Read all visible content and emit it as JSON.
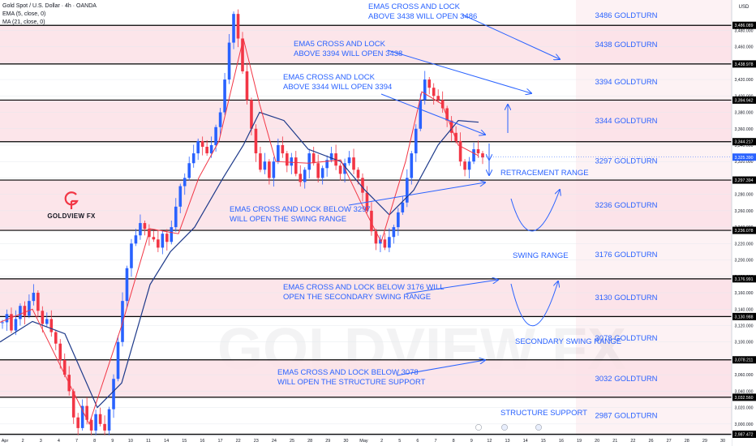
{
  "header": {
    "symbol_title": "Gold Spot / U.S. Dollar · 4h · OANDA",
    "indicator_1": "EMA (5, close, 0)",
    "indicator_2": "MA (21, close, 0)"
  },
  "currency_label": "USD",
  "brand": {
    "logo_text": "GOLDVIEW FX",
    "watermark": "GOLDVIEW FX"
  },
  "colors": {
    "candle_up": "#2962ff",
    "candle_down": "#f23645",
    "ema": "#f23645",
    "ma": "#1e3a8a",
    "zone_fill": "#fbe0e6",
    "annotation": "#2962ff",
    "level_line": "#000000"
  },
  "chart_data": {
    "type": "candlestick",
    "ylim": [
      2986,
      3515
    ],
    "price_ticks": [
      3000,
      3020,
      3040,
      3060,
      3080,
      3100,
      3120,
      3140,
      3160,
      3180,
      3200,
      3220,
      3240,
      3260,
      3280,
      3300,
      3320,
      3340,
      3360,
      3380,
      3400,
      3420,
      3440,
      3460,
      3480
    ],
    "price_tick_labels": [
      "3,000.000",
      "3,020.000",
      "3,040.000",
      "3,060.000",
      "3,080.000",
      "3,100.000",
      "3,120.000",
      "3,140.000",
      "3,160.000",
      "3,180.000",
      "3,200.000",
      "3,220.000",
      "3,240.000",
      "3,260.000",
      "3,280.000",
      "3,300.000",
      "3,320.000",
      "3,340.000",
      "3,360.000",
      "3,380.000",
      "3,400.000",
      "3,420.000",
      "3,440.000",
      "3,460.000",
      "3,480.000"
    ],
    "current_price": {
      "value": 3325.39,
      "label": "3,325.390"
    },
    "levels": [
      {
        "price": 3486.089,
        "label": "3,486.089",
        "goldturn": "3486 GOLDTURN"
      },
      {
        "price": 3438.978,
        "label": "3,438.978",
        "goldturn": "3438 GOLDTURN"
      },
      {
        "price": 3394.942,
        "label": "3,394.942",
        "goldturn": "3394 GOLDTURN"
      },
      {
        "price": 3344.217,
        "label": "3,344.217",
        "goldturn": "3344 GOLDTURN"
      },
      {
        "price": 3297.394,
        "label": "3,297.394",
        "goldturn": "3297 GOLDTURN"
      },
      {
        "price": 3236.078,
        "label": "3,236.078",
        "goldturn": "3236 GOLDTURN"
      },
      {
        "price": 3176.991,
        "label": "3,176.991",
        "goldturn": "3176 GOLDTURN"
      },
      {
        "price": 3130.988,
        "label": "3,130.988",
        "goldturn": "3130 GOLDTURN"
      },
      {
        "price": 3078.211,
        "label": "3,078.211",
        "goldturn": "3078 GOLDTURN"
      },
      {
        "price": 3032.56,
        "label": "3,032.560",
        "goldturn": "3032 GOLDTURN"
      },
      {
        "price": 2987.472,
        "label": "2,987.472",
        "goldturn": "2987 GOLDTURN"
      }
    ],
    "zones": [
      [
        3438.978,
        3486.089
      ],
      [
        3344.217,
        3394.942
      ],
      [
        3236.078,
        3297.394
      ],
      [
        3130.988,
        3176.991
      ],
      [
        3032.56,
        3078.211
      ]
    ],
    "time_labels": [
      "Apr",
      "2",
      "3",
      "4",
      "7",
      "8",
      "9",
      "10",
      "11",
      "14",
      "15",
      "16",
      "17",
      "22",
      "23",
      "24",
      "25",
      "28",
      "29",
      "30",
      "May",
      "2",
      "5",
      "6",
      "7",
      "8",
      "9",
      "12",
      "13",
      "14",
      "15",
      "16",
      "19",
      "20",
      "21",
      "22",
      "26",
      "27",
      "28",
      "29",
      "30"
    ],
    "ohlc_start_price": 3124,
    "ohlc_path": [
      3124,
      3134,
      3114,
      3128,
      3144,
      3132,
      3150,
      3160,
      3138,
      3122,
      3128,
      3112,
      3098,
      3078,
      3060,
      3040,
      3008,
      2995,
      3022,
      3005,
      2992,
      3012,
      3000,
      2992,
      3018,
      3055,
      3100,
      3150,
      3190,
      3220,
      3230,
      3245,
      3238,
      3228,
      3225,
      3215,
      3232,
      3222,
      3240,
      3265,
      3290,
      3300,
      3318,
      3330,
      3345,
      3338,
      3330,
      3340,
      3362,
      3380,
      3420,
      3465,
      3500,
      3470,
      3430,
      3395,
      3360,
      3330,
      3310,
      3320,
      3300,
      3320,
      3340,
      3330,
      3315,
      3325,
      3305,
      3295,
      3310,
      3330,
      3318,
      3300,
      3312,
      3322,
      3330,
      3315,
      3305,
      3318,
      3325,
      3310,
      3300,
      3282,
      3260,
      3235,
      3220,
      3225,
      3215,
      3228,
      3240,
      3258,
      3270,
      3300,
      3330,
      3360,
      3395,
      3420,
      3410,
      3400,
      3395,
      3385,
      3370,
      3355,
      3345,
      3320,
      3310,
      3320,
      3335,
      3330,
      3325
    ],
    "ema_points": [
      [
        0,
        3124
      ],
      [
        40,
        3140
      ],
      [
        85,
        3050
      ],
      [
        110,
        3000
      ],
      [
        150,
        3120
      ],
      [
        185,
        3238
      ],
      [
        220,
        3232
      ],
      [
        245,
        3300
      ],
      [
        270,
        3345
      ],
      [
        300,
        3470
      ],
      [
        320,
        3390
      ],
      [
        340,
        3320
      ],
      [
        380,
        3318
      ],
      [
        420,
        3322
      ],
      [
        445,
        3270
      ],
      [
        470,
        3222
      ],
      [
        500,
        3320
      ],
      [
        520,
        3405
      ],
      [
        545,
        3390
      ],
      [
        565,
        3340
      ],
      [
        590,
        3327
      ]
    ],
    "ma_points": [
      [
        0,
        3100
      ],
      [
        40,
        3125
      ],
      [
        80,
        3110
      ],
      [
        120,
        3020
      ],
      [
        150,
        3050
      ],
      [
        185,
        3170
      ],
      [
        210,
        3210
      ],
      [
        240,
        3240
      ],
      [
        275,
        3300
      ],
      [
        300,
        3340
      ],
      [
        320,
        3380
      ],
      [
        350,
        3370
      ],
      [
        380,
        3335
      ],
      [
        420,
        3320
      ],
      [
        450,
        3285
      ],
      [
        480,
        3255
      ],
      [
        510,
        3285
      ],
      [
        540,
        3340
      ],
      [
        565,
        3370
      ],
      [
        590,
        3368
      ]
    ]
  },
  "annotations": {
    "ema_3438_line1": "EMA5 CROSS AND LOCK",
    "ema_3438_line2": "ABOVE 3438 WILL OPEN 3486",
    "ema_3394_line1": "EMA5 CROSS AND LOCK",
    "ema_3394_line2": "ABOVE 3394 WILL OPEN 3438",
    "ema_3344_line1": "EMA5 CROSS AND LOCK",
    "ema_3344_line2": "ABOVE 3344 WILL OPEN 3394",
    "ema_3297_line1": "EMA5 CROSS AND LOCK BELOW 3297",
    "ema_3297_line2": "WILL OPEN THE SWING RANGE",
    "ema_3176_line1": "EMA5 CROSS AND LOCK BELOW 3176 WILL",
    "ema_3176_line2": "OPEN THE SECONDARY SWING RANGE",
    "ema_3078_line1": "EMA5 CROSS AND LOCK BELOW 3078",
    "ema_3078_line2": "WILL OPEN THE STRUCTURE SUPPORT",
    "retracement_range": "RETRACEMENT RANGE",
    "swing_range": "SWING RANGE",
    "secondary_swing_range": "SECONDARY SWING RANGE",
    "structure_support": "STRUCTURE SUPPORT"
  }
}
